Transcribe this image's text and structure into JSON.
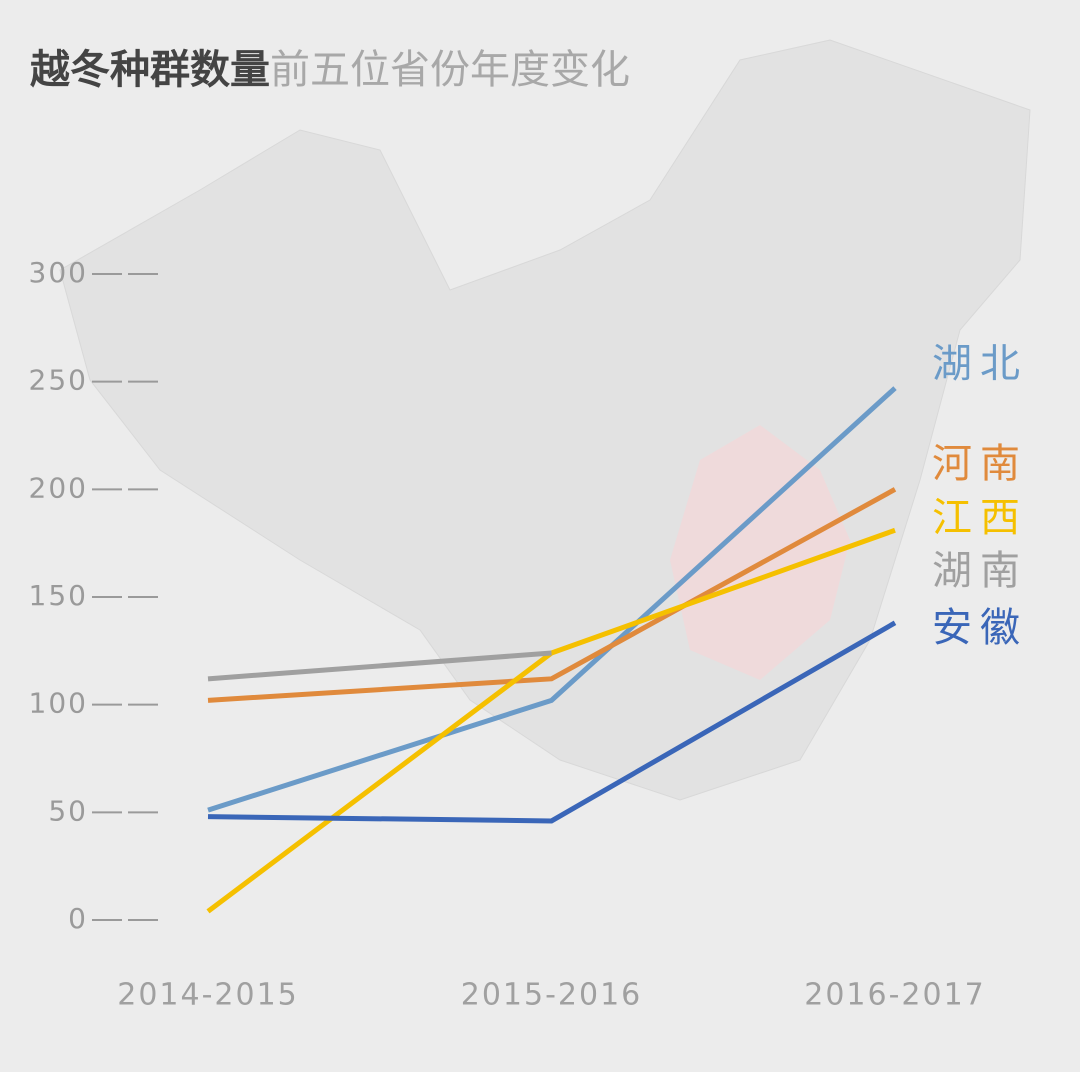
{
  "chart_data": {
    "type": "line",
    "title": "越冬种群数量",
    "subtitle": "前五位省份年度变化",
    "categories": [
      "2014-2015",
      "2015-2016",
      "2016-2017"
    ],
    "series": [
      {
        "name": "湖北",
        "color": "#6b9bc8",
        "values": [
          51,
          102,
          247
        ]
      },
      {
        "name": "河南",
        "color": "#e08a3c",
        "values": [
          102,
          112,
          200
        ]
      },
      {
        "name": "江西",
        "color": "#f5c000",
        "values": [
          4,
          124,
          181
        ]
      },
      {
        "name": "湖南",
        "color": "#a0a0a0",
        "values": [
          112,
          124,
          null
        ]
      },
      {
        "name": "安徽",
        "color": "#3a66b8",
        "values": [
          48,
          46,
          138
        ]
      }
    ],
    "ylim": [
      0,
      300
    ],
    "yticks": [
      0,
      50,
      100,
      150,
      200,
      250,
      300
    ]
  }
}
